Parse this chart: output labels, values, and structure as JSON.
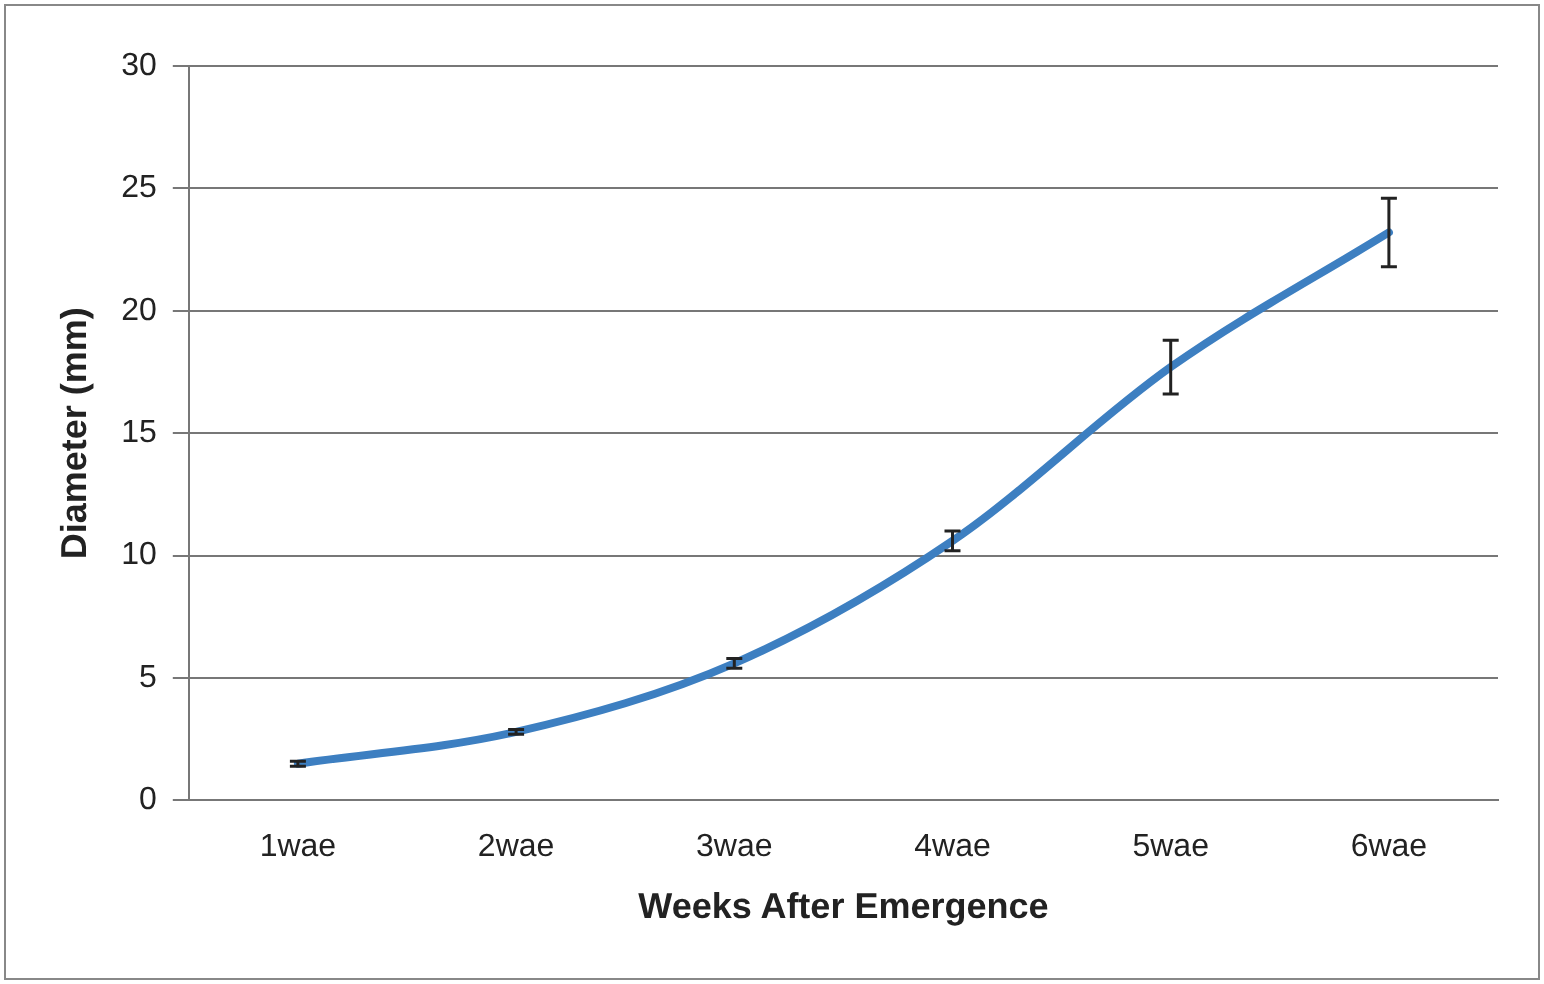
{
  "chart_data": {
    "type": "line",
    "xlabel": "Weeks After Emergence",
    "ylabel": "Diameter (mm)",
    "categories": [
      "1wae",
      "2wae",
      "3wae",
      "4wae",
      "5wae",
      "6wae"
    ],
    "series": [
      {
        "color": "#3d7fc1",
        "values": [
          1.5,
          2.8,
          5.6,
          10.6,
          17.7,
          23.2
        ],
        "errors": [
          0.1,
          0.1,
          0.2,
          0.4,
          1.1,
          1.4
        ]
      }
    ],
    "ylim": [
      0,
      30
    ],
    "yticks": [
      0,
      5,
      10,
      15,
      20,
      25,
      30
    ],
    "grid": "y",
    "legend": false,
    "marker": "none",
    "line_style": "solid"
  }
}
